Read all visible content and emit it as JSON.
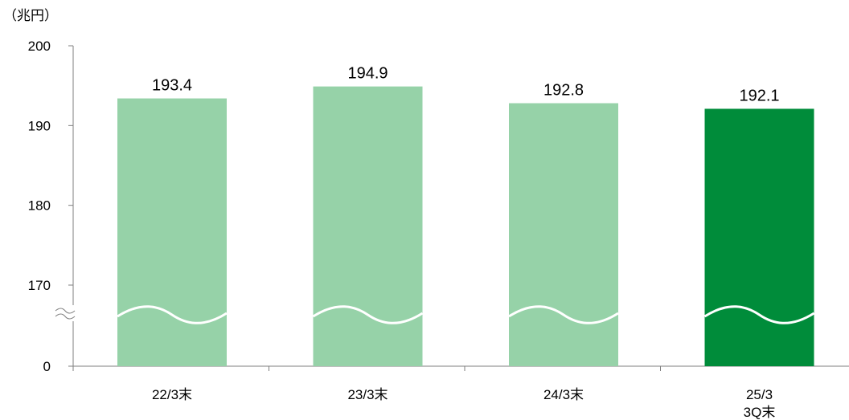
{
  "chart_data": {
    "type": "bar",
    "unit_label": "（兆円）",
    "categories": [
      [
        "22/3末"
      ],
      [
        "23/3末"
      ],
      [
        "24/3末"
      ],
      [
        "25/3",
        "3Q末"
      ]
    ],
    "values": [
      193.4,
      194.9,
      192.8,
      192.1
    ],
    "value_labels": [
      "193.4",
      "194.9",
      "192.8",
      "192.1"
    ],
    "y_ticks": [
      "0",
      "170",
      "180",
      "190",
      "200"
    ],
    "ylim": [
      170,
      200
    ],
    "axis_break": true,
    "colors": {
      "default_bar": "#96d2a8",
      "highlight_bar": "#008c3a",
      "break_line": "#ffffff",
      "axis": "#7f7f7f"
    },
    "highlight_index": 3
  }
}
